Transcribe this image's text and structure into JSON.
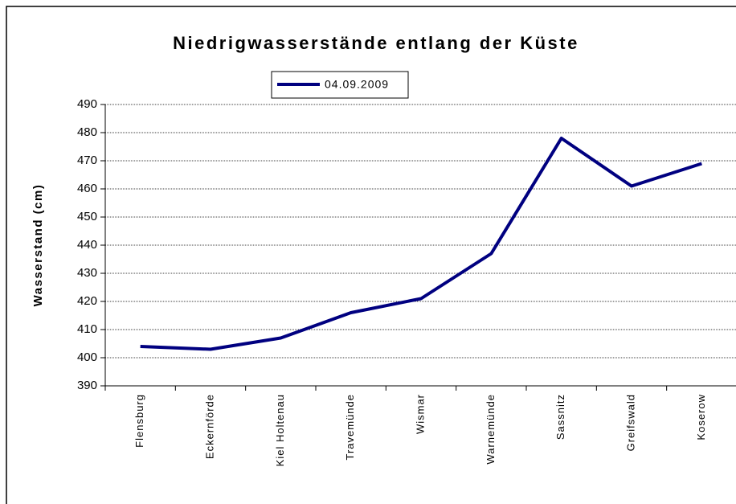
{
  "chart_data": {
    "type": "line",
    "title": "Niedrigwasserstände entlang der Küste",
    "y_label": "Wasserstand (cm)",
    "categories": [
      "Flensburg",
      "Eckernförde",
      "Kiel Holtenau",
      "Travemünde",
      "Wismar",
      "Warnemünde",
      "Sassnitz",
      "Greifswald",
      "Koserow"
    ],
    "series": [
      {
        "name": "04.09.2009",
        "color": "#000080",
        "values": [
          404,
          403,
          407,
          416,
          421,
          437,
          478,
          461,
          469
        ]
      }
    ],
    "ylim": [
      390,
      490
    ],
    "yticks": [
      390,
      400,
      410,
      420,
      430,
      440,
      450,
      460,
      470,
      480,
      490
    ],
    "grid": true,
    "legend": "top"
  }
}
